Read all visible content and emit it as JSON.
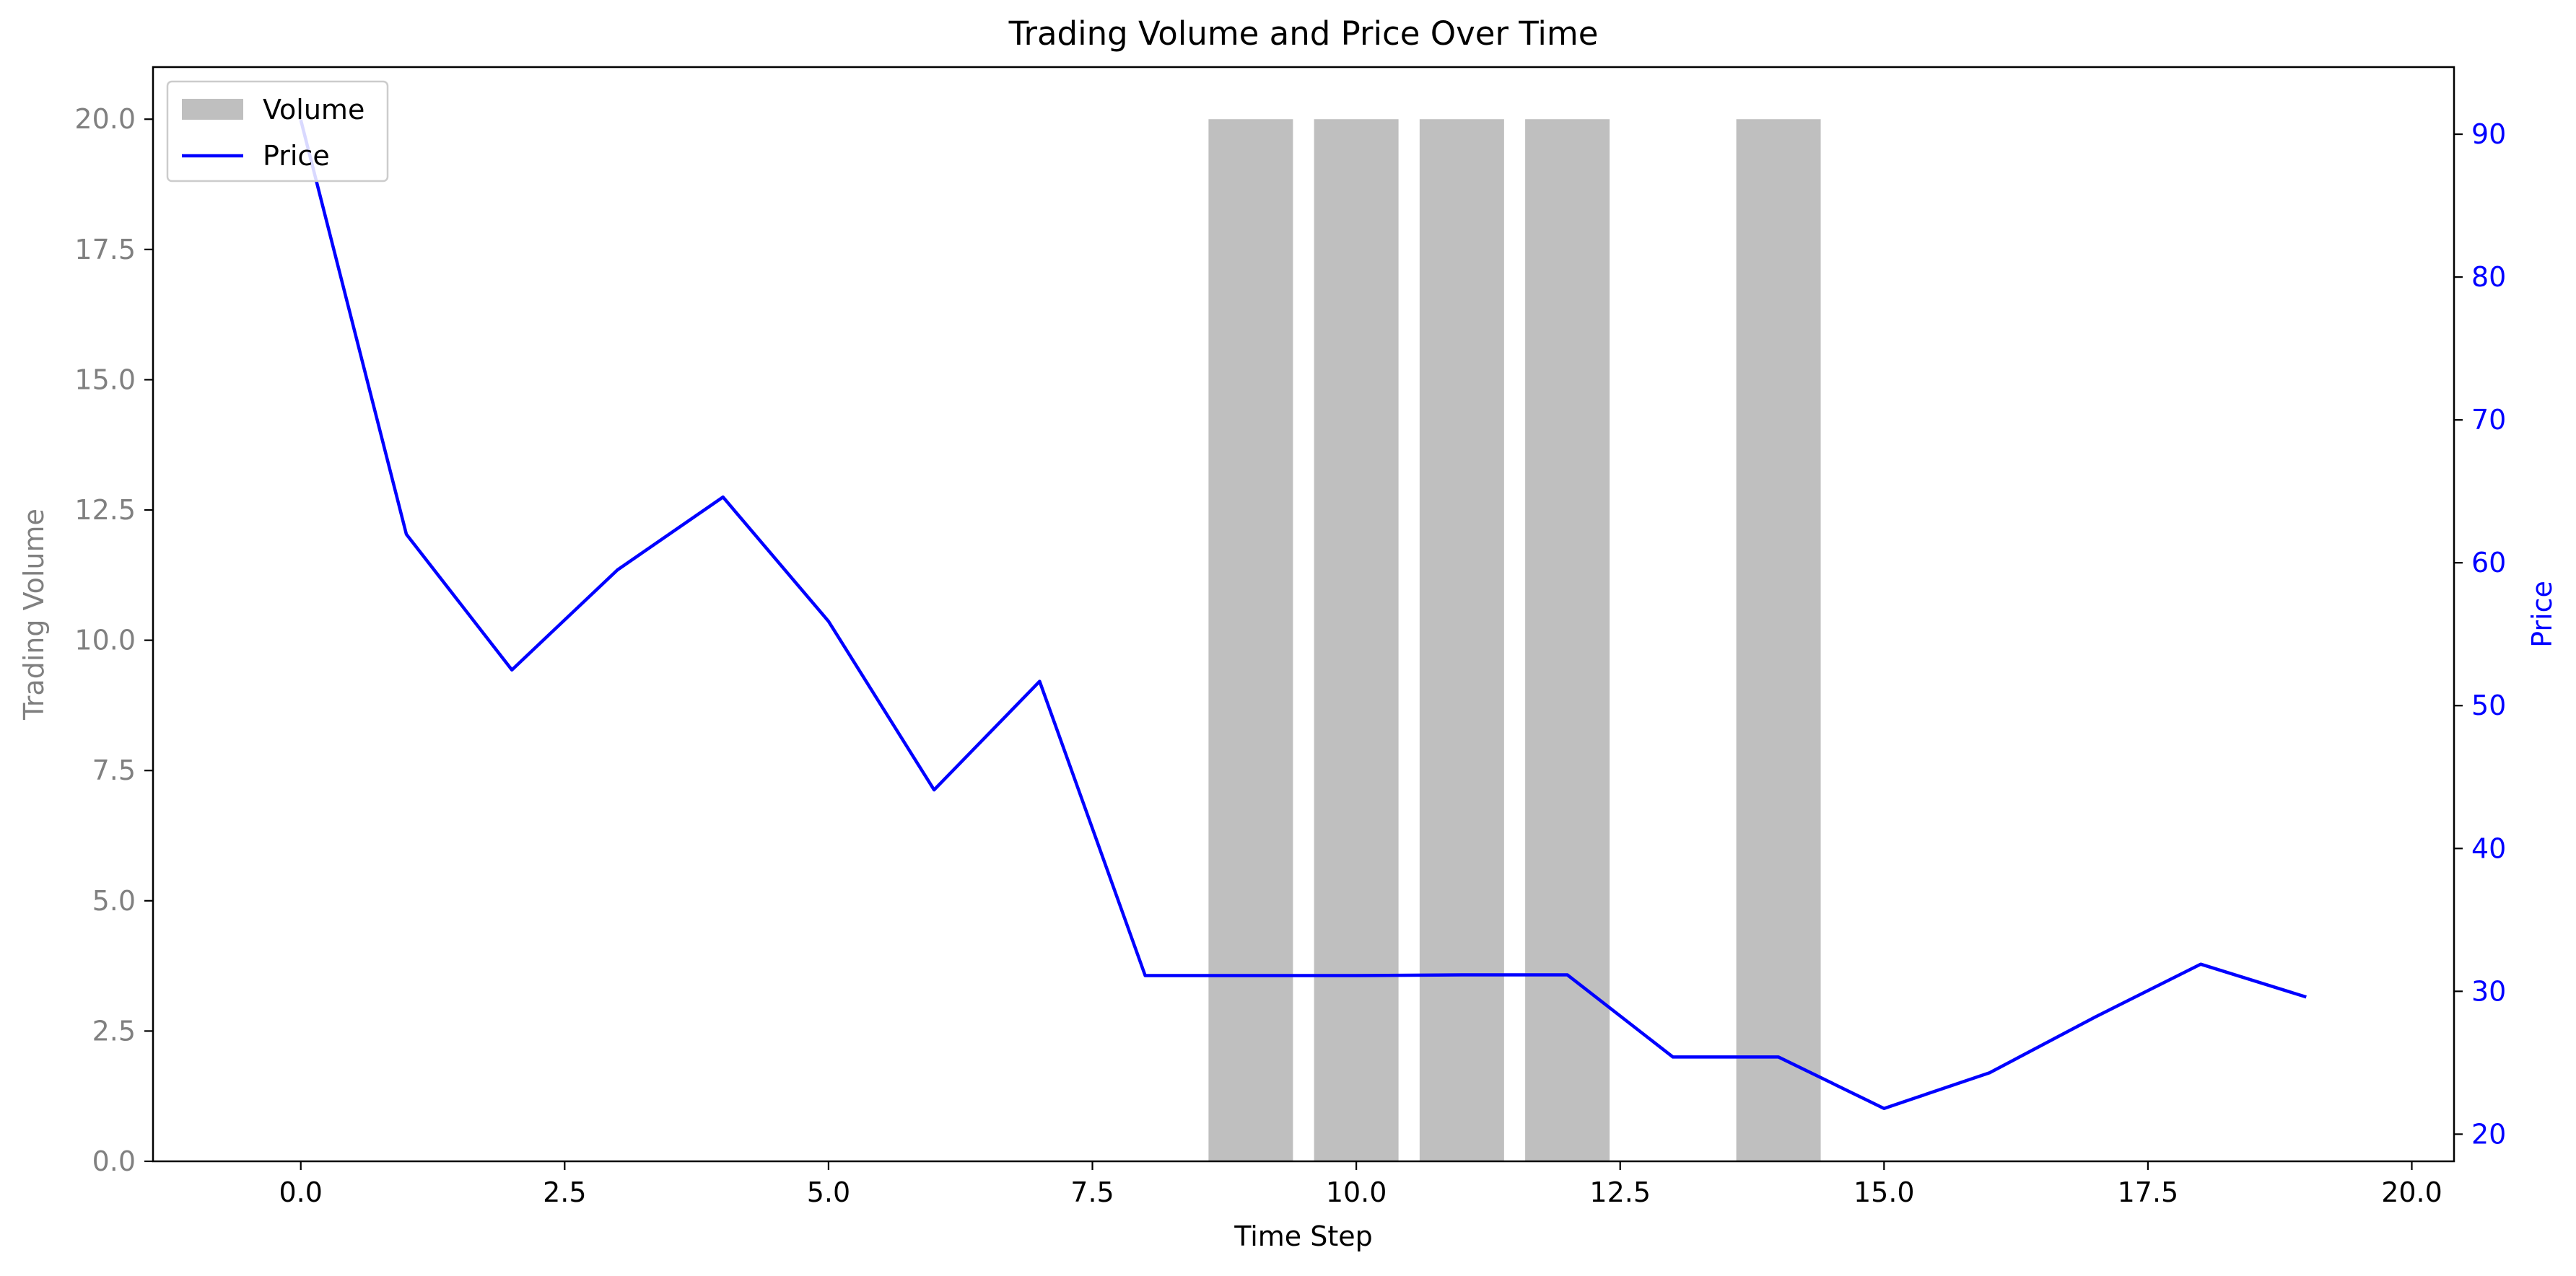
{
  "chart_data": {
    "type": "bar+line",
    "title": "Trading Volume and Price Over Time",
    "xlabel": "Time Step",
    "ylabel_left": "Trading Volume",
    "ylabel_right": "Price",
    "xlim": [
      -1.4,
      20.4
    ],
    "ylim_left": [
      0,
      21
    ],
    "ylim_right": [
      18.1,
      94.7
    ],
    "x_ticks": [
      0.0,
      2.5,
      5.0,
      7.5,
      10.0,
      12.5,
      15.0,
      17.5,
      20.0
    ],
    "x_tick_labels": [
      "0.0",
      "2.5",
      "5.0",
      "7.5",
      "10.0",
      "12.5",
      "15.0",
      "17.5",
      "20.0"
    ],
    "y_left_ticks": [
      0.0,
      2.5,
      5.0,
      7.5,
      10.0,
      12.5,
      15.0,
      17.5,
      20.0
    ],
    "y_left_tick_labels": [
      "0.0",
      "2.5",
      "5.0",
      "7.5",
      "10.0",
      "12.5",
      "15.0",
      "17.5",
      "20.0"
    ],
    "y_right_ticks": [
      20,
      30,
      40,
      50,
      60,
      70,
      80,
      90
    ],
    "y_right_tick_labels": [
      "20",
      "30",
      "40",
      "50",
      "60",
      "70",
      "80",
      "90"
    ],
    "bar_width": 0.8,
    "series": [
      {
        "name": "Volume",
        "kind": "bar",
        "axis": "left",
        "color": "#bfbfbf",
        "x": [
          9,
          10,
          11,
          12,
          14
        ],
        "values": [
          20,
          20,
          20,
          20,
          20
        ]
      },
      {
        "name": "Price",
        "kind": "line",
        "axis": "right",
        "color": "#0000ff",
        "x": [
          0,
          1,
          2,
          3,
          4,
          5,
          6,
          7,
          8,
          9,
          10,
          11,
          12,
          13,
          14,
          15,
          16,
          17,
          18,
          19
        ],
        "values": [
          91.0,
          62.0,
          52.5,
          59.5,
          64.6,
          55.9,
          44.1,
          51.7,
          31.1,
          31.1,
          31.1,
          31.15,
          31.15,
          25.4,
          25.4,
          21.8,
          24.3,
          28.2,
          31.9,
          29.6
        ]
      }
    ],
    "legend": {
      "placement": "upper-left"
    },
    "grid": false,
    "colors": {
      "left_axis_text": "#808080",
      "right_axis_text": "#0000ff",
      "frame": "#000000"
    }
  }
}
